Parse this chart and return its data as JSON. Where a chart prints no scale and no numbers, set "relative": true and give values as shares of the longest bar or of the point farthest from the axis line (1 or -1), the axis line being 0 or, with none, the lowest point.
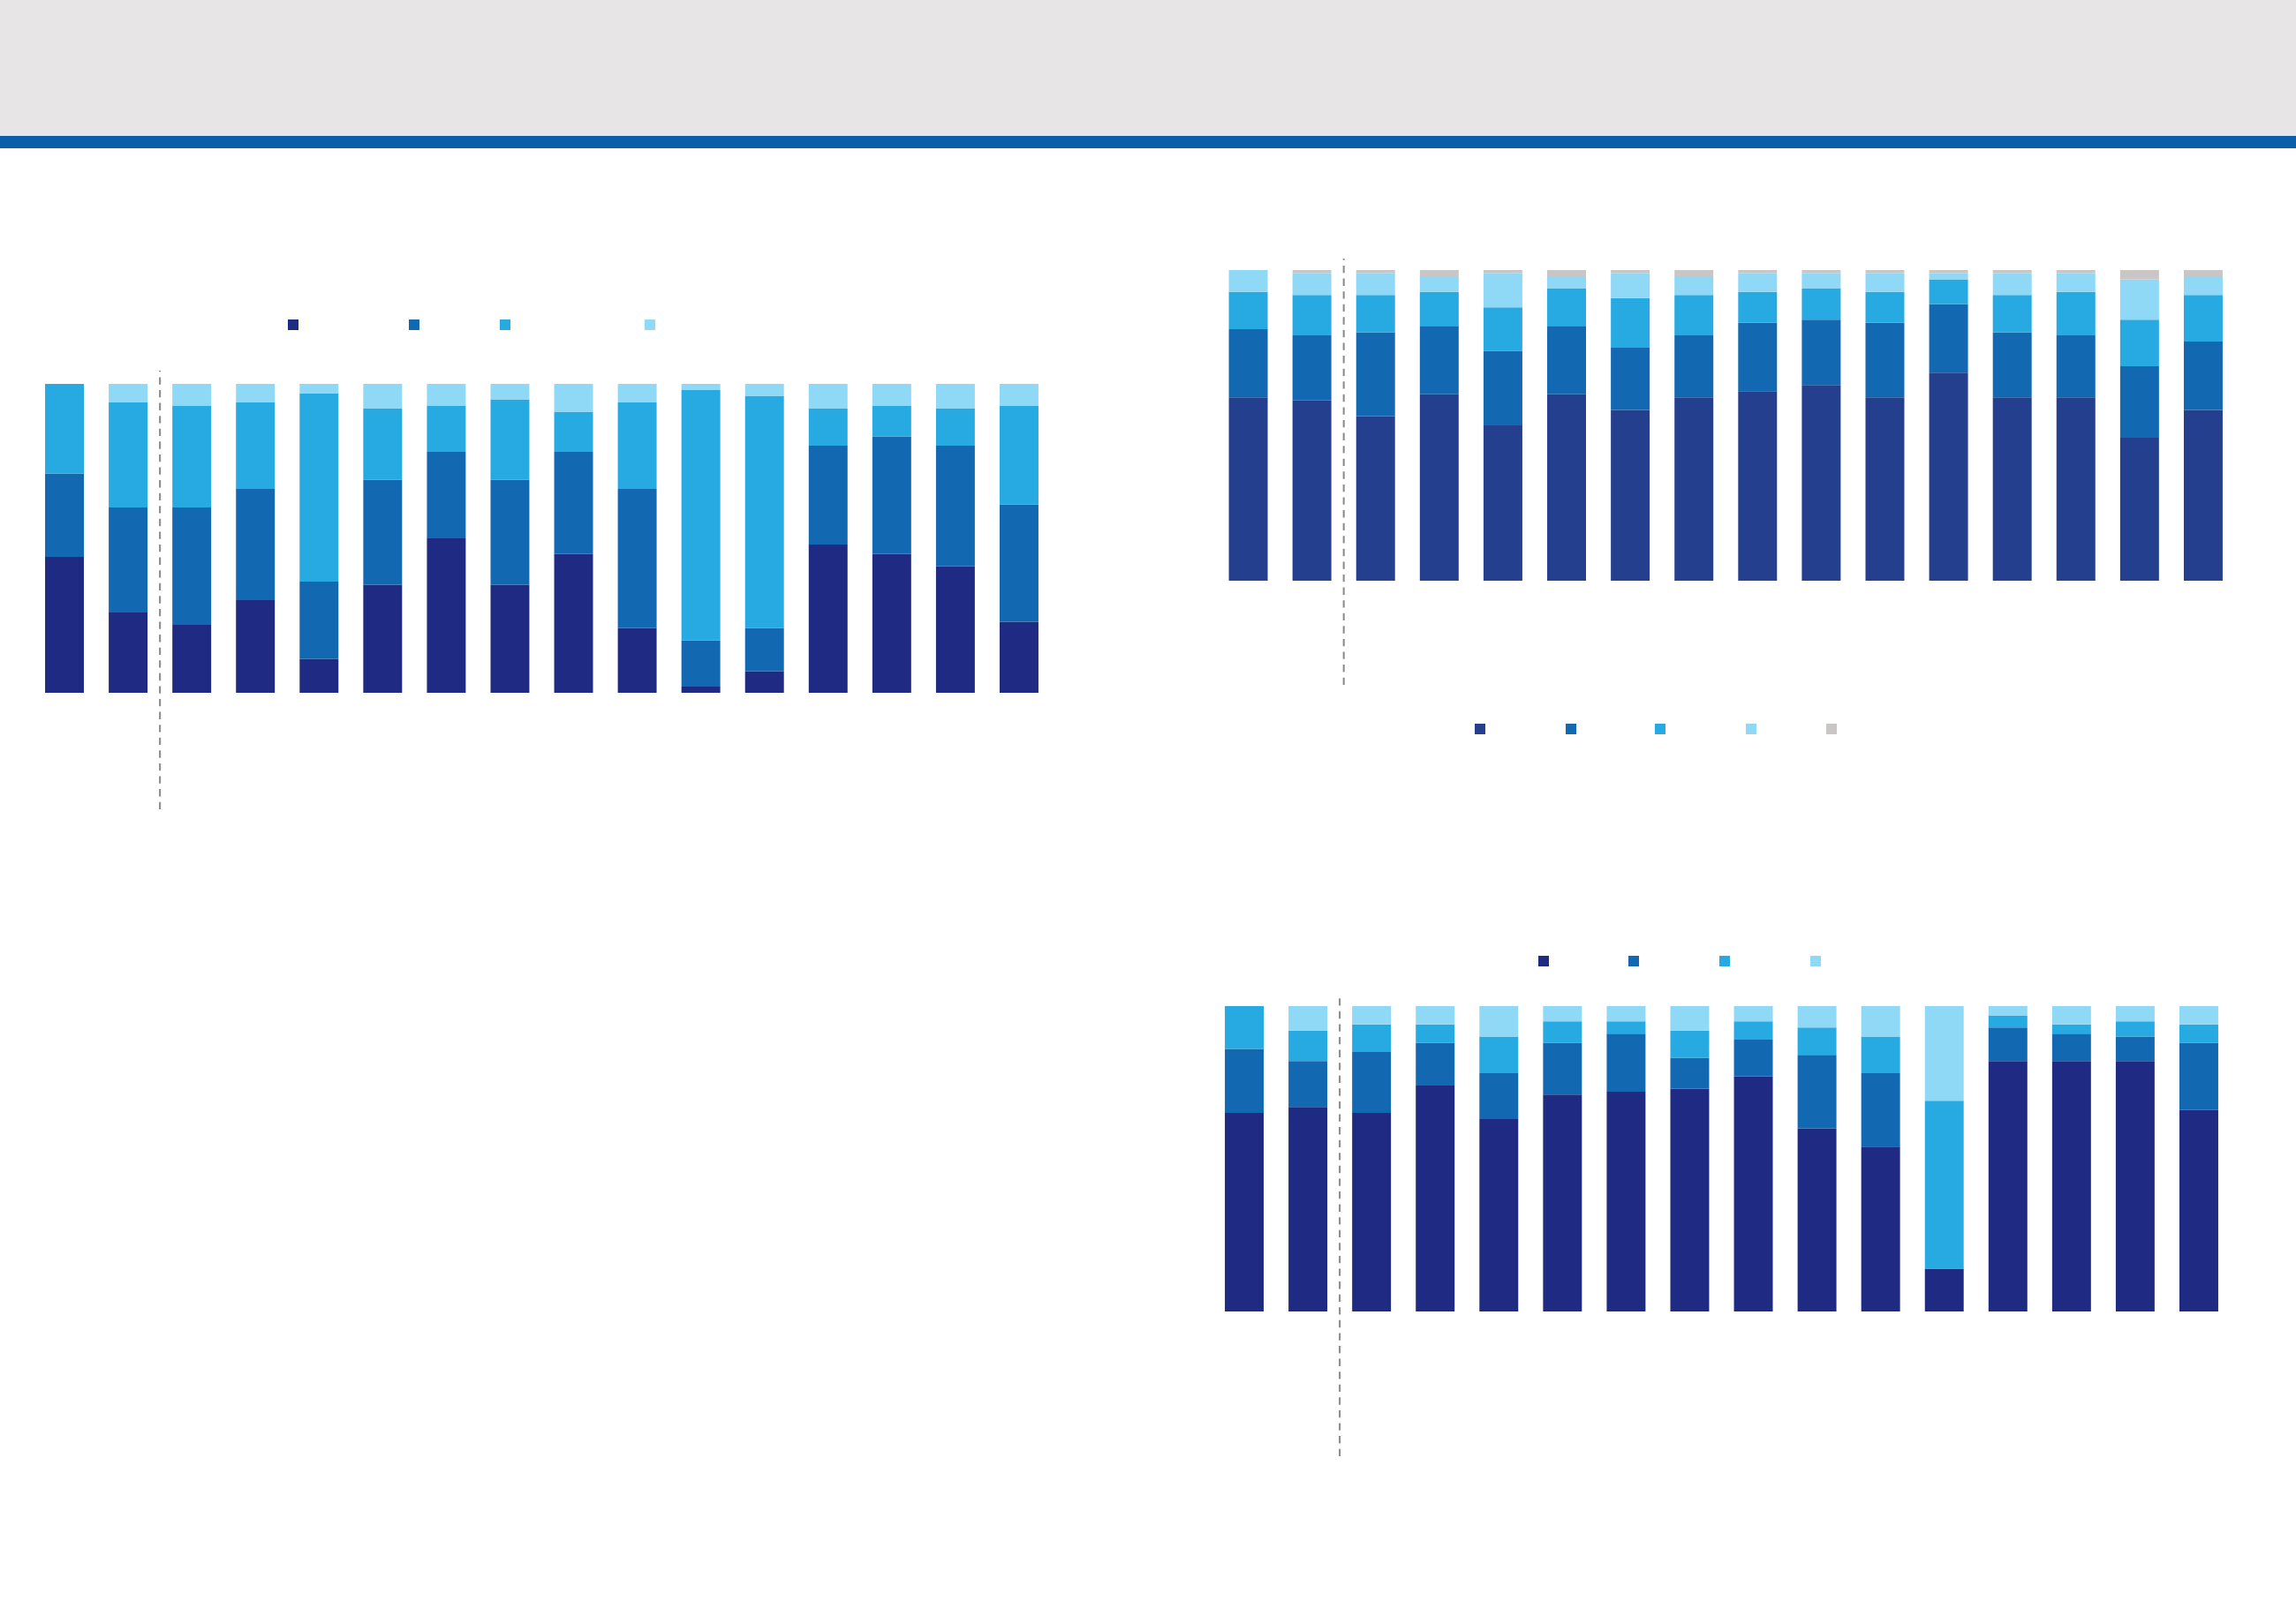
{
  "chart_data": [
    {
      "type": "bar",
      "stacked": true,
      "relative": true,
      "categories": [
        null,
        null,
        null,
        null,
        null,
        null,
        null,
        null,
        null,
        null,
        null,
        null,
        null,
        null,
        null,
        null
      ],
      "series": [
        {
          "color": "#1f2a82",
          "values": [
            0.65,
            0.67,
            0.65,
            0.74,
            0.63,
            0.71,
            0.72,
            0.73,
            0.77,
            0.6,
            0.54,
            0.14,
            0.82,
            0.82,
            0.82,
            0.66
          ]
        },
        {
          "color": "#1368b2",
          "values": [
            0.21,
            0.15,
            0.2,
            0.14,
            0.15,
            0.17,
            0.19,
            0.1,
            0.12,
            0.24,
            0.24,
            0,
            0.11,
            0.09,
            0.08,
            0.22
          ]
        },
        {
          "color": "#27a9e1",
          "values": [
            0.14,
            0.1,
            0.09,
            0.06,
            0.12,
            0.07,
            0.04,
            0.09,
            0.06,
            0.09,
            0.12,
            0.55,
            0.04,
            0.03,
            0.05,
            0.06
          ]
        },
        {
          "color": "#8fd8f6",
          "values": [
            0,
            0.08,
            0.06,
            0.06,
            0.1,
            0.05,
            0.05,
            0.08,
            0.05,
            0.07,
            0.1,
            0.31,
            0.03,
            0.06,
            0.05,
            0.06
          ]
        }
      ]
    },
    {
      "type": "bar",
      "stacked": true,
      "relative": true,
      "categories": [
        null,
        null,
        null,
        null,
        null,
        null,
        null,
        null,
        null,
        null,
        null,
        null,
        null,
        null,
        null,
        null
      ],
      "series": [
        {
          "color": "#1f2a82",
          "values": [
            0.44,
            0.26,
            0.22,
            0.3,
            0.11,
            0.35,
            0.5,
            0.35,
            0.45,
            0.21,
            0.02,
            0.07,
            0.48,
            0.45,
            0.41,
            0.23
          ]
        },
        {
          "color": "#1368b2",
          "values": [
            0.27,
            0.34,
            0.38,
            0.36,
            0.25,
            0.34,
            0.28,
            0.34,
            0.33,
            0.45,
            0.15,
            0.14,
            0.32,
            0.38,
            0.39,
            0.38
          ]
        },
        {
          "color": "#27a9e1",
          "values": [
            0.29,
            0.34,
            0.33,
            0.28,
            0.61,
            0.23,
            0.15,
            0.26,
            0.13,
            0.28,
            0.81,
            0.75,
            0.12,
            0.1,
            0.12,
            0.32
          ]
        },
        {
          "color": "#8fd8f6",
          "values": [
            0,
            0.06,
            0.07,
            0.06,
            0.03,
            0.08,
            0.07,
            0.05,
            0.09,
            0.06,
            0.02,
            0.04,
            0.08,
            0.07,
            0.08,
            0.07
          ]
        }
      ]
    },
    {
      "type": "bar",
      "stacked": true,
      "relative": true,
      "categories": [
        null,
        null,
        null,
        null,
        null,
        null,
        null,
        null,
        null,
        null,
        null,
        null,
        null,
        null,
        null,
        null
      ],
      "series": [
        {
          "color": "#243f8e",
          "values": [
            0.59,
            0.58,
            0.53,
            0.6,
            0.5,
            0.6,
            0.55,
            0.59,
            0.61,
            0.63,
            0.59,
            0.67,
            0.59,
            0.59,
            0.46,
            0.55
          ]
        },
        {
          "color": "#1368b2",
          "values": [
            0.22,
            0.21,
            0.27,
            0.22,
            0.24,
            0.22,
            0.2,
            0.2,
            0.22,
            0.21,
            0.24,
            0.22,
            0.21,
            0.2,
            0.23,
            0.22
          ]
        },
        {
          "color": "#27a9e1",
          "values": [
            0.12,
            0.13,
            0.12,
            0.11,
            0.14,
            0.12,
            0.16,
            0.13,
            0.1,
            0.1,
            0.1,
            0.08,
            0.12,
            0.14,
            0.15,
            0.15
          ]
        },
        {
          "color": "#8fd8f6",
          "values": [
            0.07,
            0.07,
            0.07,
            0.05,
            0.11,
            0.04,
            0.08,
            0.06,
            0.06,
            0.05,
            0.06,
            0.02,
            0.07,
            0.06,
            0.13,
            0.06
          ]
        },
        {
          "color": "#cbc6c6",
          "values": [
            0,
            0.01,
            0.01,
            0.02,
            0.01,
            0.02,
            0.01,
            0.02,
            0.01,
            0.01,
            0.01,
            0.01,
            0.01,
            0.01,
            0.03,
            0.02
          ]
        }
      ]
    }
  ]
}
